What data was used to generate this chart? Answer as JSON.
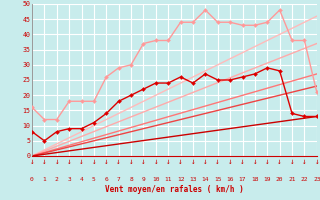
{
  "background_color": "#c8ecec",
  "grid_color": "#ffffff",
  "xmin": 0,
  "xmax": 23,
  "ymin": 0,
  "ymax": 50,
  "xlabel": "Vent moyen/en rafales ( km/h )",
  "lines": [
    {
      "color": "#dd0000",
      "lw": 1.0,
      "marker": "D",
      "ms": 2.0,
      "data": [
        [
          0,
          8
        ],
        [
          1,
          5
        ],
        [
          2,
          8
        ],
        [
          3,
          9
        ],
        [
          4,
          9
        ],
        [
          5,
          11
        ],
        [
          6,
          14
        ],
        [
          7,
          18
        ],
        [
          8,
          20
        ],
        [
          9,
          22
        ],
        [
          10,
          24
        ],
        [
          11,
          24
        ],
        [
          12,
          26
        ],
        [
          13,
          24
        ],
        [
          14,
          27
        ],
        [
          15,
          25
        ],
        [
          16,
          25
        ],
        [
          17,
          26
        ],
        [
          18,
          27
        ],
        [
          19,
          29
        ],
        [
          20,
          28
        ],
        [
          21,
          14
        ],
        [
          22,
          13
        ],
        [
          23,
          13
        ]
      ]
    },
    {
      "color": "#ff9999",
      "lw": 1.0,
      "marker": "D",
      "ms": 2.0,
      "data": [
        [
          0,
          16
        ],
        [
          1,
          12
        ],
        [
          2,
          12
        ],
        [
          3,
          18
        ],
        [
          4,
          18
        ],
        [
          5,
          18
        ],
        [
          6,
          26
        ],
        [
          7,
          29
        ],
        [
          8,
          30
        ],
        [
          9,
          37
        ],
        [
          10,
          38
        ],
        [
          11,
          38
        ],
        [
          12,
          44
        ],
        [
          13,
          44
        ],
        [
          14,
          48
        ],
        [
          15,
          44
        ],
        [
          16,
          44
        ],
        [
          17,
          43
        ],
        [
          18,
          43
        ],
        [
          19,
          44
        ],
        [
          20,
          48
        ],
        [
          21,
          38
        ],
        [
          22,
          38
        ],
        [
          23,
          21
        ]
      ]
    },
    {
      "color": "#ffbbbb",
      "lw": 1.0,
      "marker": null,
      "data": [
        [
          0,
          0
        ],
        [
          23,
          46
        ]
      ]
    },
    {
      "color": "#ffaaaa",
      "lw": 1.0,
      "marker": null,
      "data": [
        [
          0,
          0
        ],
        [
          23,
          37
        ]
      ]
    },
    {
      "color": "#ff7777",
      "lw": 1.0,
      "marker": null,
      "data": [
        [
          0,
          0
        ],
        [
          23,
          27
        ]
      ]
    },
    {
      "color": "#ee4444",
      "lw": 1.0,
      "marker": null,
      "data": [
        [
          0,
          0
        ],
        [
          23,
          23
        ]
      ]
    },
    {
      "color": "#cc0000",
      "lw": 1.0,
      "marker": null,
      "data": [
        [
          0,
          0
        ],
        [
          23,
          13
        ]
      ]
    }
  ],
  "yticks": [
    0,
    5,
    10,
    15,
    20,
    25,
    30,
    35,
    40,
    45,
    50
  ],
  "xticks": [
    0,
    1,
    2,
    3,
    4,
    5,
    6,
    7,
    8,
    9,
    10,
    11,
    12,
    13,
    14,
    15,
    16,
    17,
    18,
    19,
    20,
    21,
    22,
    23
  ]
}
